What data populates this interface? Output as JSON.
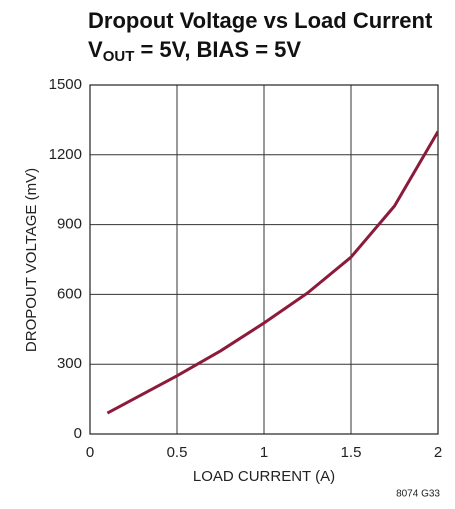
{
  "chart_data": {
    "type": "line",
    "title": "Dropout Voltage vs Load Current",
    "subtitle": {
      "main": "V",
      "subscript": "OUT",
      "rest": " = 5V, BIAS = 5V"
    },
    "x_label": "LOAD CURRENT (A)",
    "y_label": "DROPOUT VOLTAGE (mV)",
    "footnote": "8074 G33",
    "x": [
      0.1,
      0.5,
      0.75,
      1.0,
      1.25,
      1.5,
      1.75,
      2.0
    ],
    "series": [
      {
        "name": null,
        "color": "#8c1b3b",
        "values": [
          90,
          250,
          357,
          477,
          606,
          760,
          980,
          1300
        ]
      }
    ],
    "xlim": [
      0,
      2
    ],
    "xticks": [
      0,
      0.5,
      1,
      1.5,
      2
    ],
    "ylim": [
      0,
      1500
    ],
    "yticks": [
      0,
      300,
      600,
      900,
      1200,
      1500
    ],
    "grid": true
  }
}
